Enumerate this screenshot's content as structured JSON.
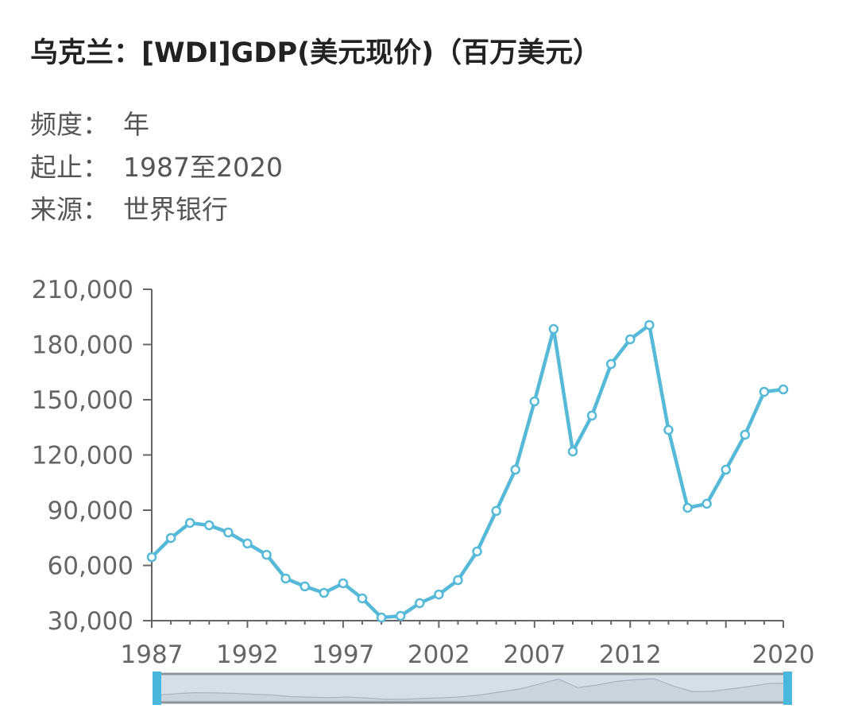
{
  "title": "乌克兰：[WDI]GDP(美元现价)（百万美元）",
  "meta": [
    {
      "label": "频度：",
      "value": "年"
    },
    {
      "label": "起止：",
      "value": "1987至2020"
    },
    {
      "label": "来源：",
      "value": "世界银行"
    }
  ],
  "colors": {
    "line": "#56b9d8",
    "slider_handle": "#4ab8dc",
    "slider_fill": "#d6dee8"
  },
  "chart_data": {
    "type": "line",
    "title": "",
    "xlabel": "",
    "ylabel": "",
    "ylim": [
      30000,
      210000
    ],
    "xlim": [
      1987,
      2020
    ],
    "yticks": [
      "30,000",
      "60,000",
      "90,000",
      "120,000",
      "150,000",
      "180,000",
      "210,000"
    ],
    "xticks": [
      "1987",
      "1992",
      "1997",
      "2002",
      "2007",
      "2012",
      "2020"
    ],
    "grid": false,
    "x": [
      1987,
      1988,
      1989,
      1990,
      1991,
      1992,
      1993,
      1994,
      1995,
      1996,
      1997,
      1998,
      1999,
      2000,
      2001,
      2002,
      2003,
      2004,
      2005,
      2006,
      2007,
      2008,
      2009,
      2010,
      2011,
      2012,
      2013,
      2014,
      2015,
      2016,
      2017,
      2018,
      2019,
      2020
    ],
    "values": [
      64500,
      74900,
      83100,
      81800,
      77900,
      71900,
      65800,
      52900,
      48600,
      45100,
      50300,
      42100,
      31700,
      32600,
      39500,
      44200,
      52000,
      67600,
      89600,
      112000,
      149100,
      188400,
      121900,
      141400,
      169400,
      182800,
      190600,
      133600,
      91300,
      93500,
      112000,
      131000,
      154300,
      155600
    ],
    "data_zoom": {
      "start": 1987,
      "end": 2020
    }
  }
}
